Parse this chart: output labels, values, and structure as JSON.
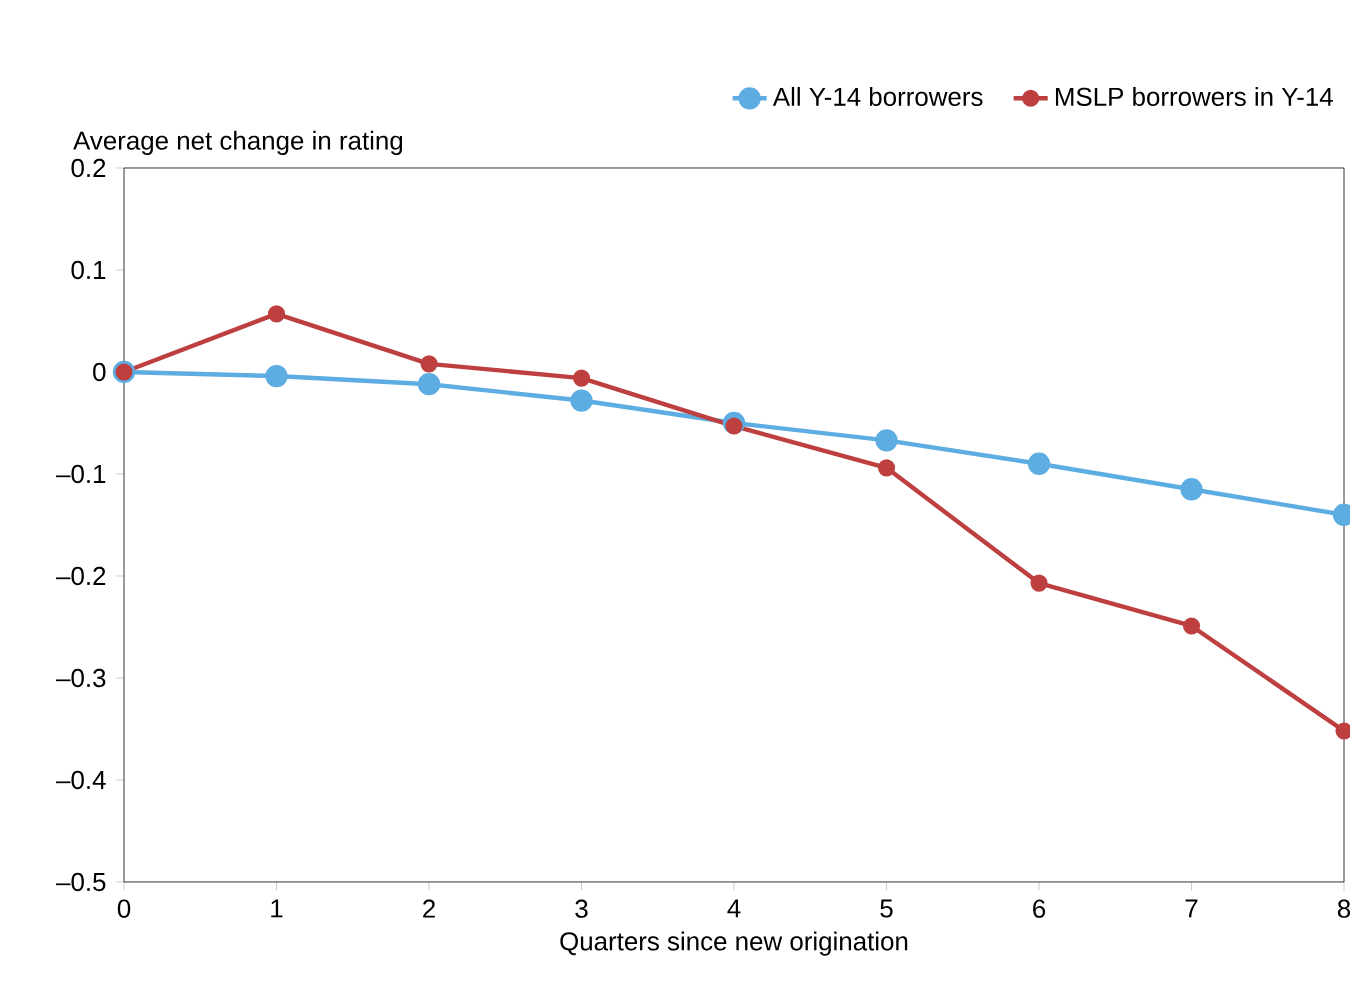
{
  "chart_data": {
    "type": "line",
    "xlabel": "Quarters since new origination",
    "ylabel": "Average net change in rating",
    "x": [
      0,
      1,
      2,
      3,
      4,
      5,
      6,
      7,
      8
    ],
    "series": [
      {
        "name": "All Y-14 borrowers",
        "color": "#5dade2",
        "values": [
          0,
          -0.004,
          -0.012,
          -0.028,
          -0.05,
          -0.067,
          -0.09,
          -0.115,
          -0.14
        ]
      },
      {
        "name": "MSLP borrowers in Y-14",
        "color": "#be3f3f",
        "values": [
          0,
          0.057,
          0.008,
          -0.006,
          -0.053,
          -0.094,
          -0.207,
          -0.249,
          -0.352
        ]
      }
    ],
    "xlim": [
      0,
      8
    ],
    "xticks": [
      0,
      1,
      2,
      3,
      4,
      5,
      6,
      7,
      8
    ],
    "ylim": [
      -0.5,
      0.2
    ],
    "yticks": [
      {
        "value": -0.5,
        "label": "–0.5"
      },
      {
        "value": -0.4,
        "label": "–0.4"
      },
      {
        "value": -0.3,
        "label": "–0.3"
      },
      {
        "value": -0.2,
        "label": "–0.2"
      },
      {
        "value": -0.1,
        "label": "–0.1"
      },
      0,
      0.1,
      0.2
    ],
    "marker": "circle",
    "line_style": "solid",
    "grid": false,
    "legend": "top right"
  }
}
